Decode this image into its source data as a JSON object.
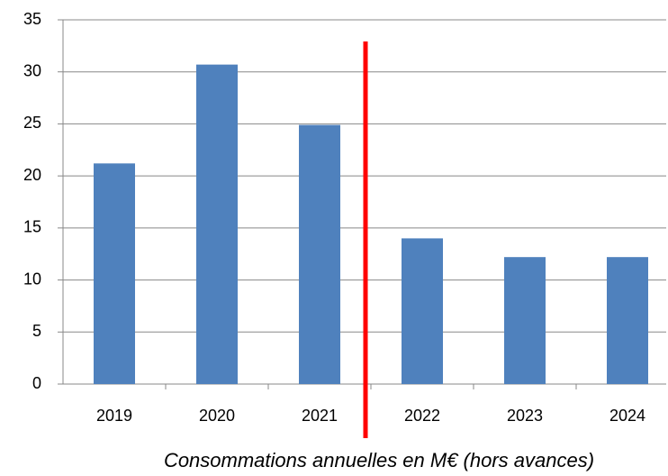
{
  "chart_data": {
    "type": "bar",
    "x_label": "Consommations annuelles en M€ (hors avances)",
    "categories": [
      "2019",
      "2020",
      "2021",
      "2022",
      "2023",
      "2024"
    ],
    "values": [
      21.2,
      30.7,
      24.9,
      14.0,
      12.2,
      12.2
    ],
    "color": "#4f81bd",
    "ylim": [
      0,
      35
    ],
    "yticks": [
      0,
      5,
      10,
      15,
      20,
      25,
      30,
      35
    ],
    "grid": true
  }
}
